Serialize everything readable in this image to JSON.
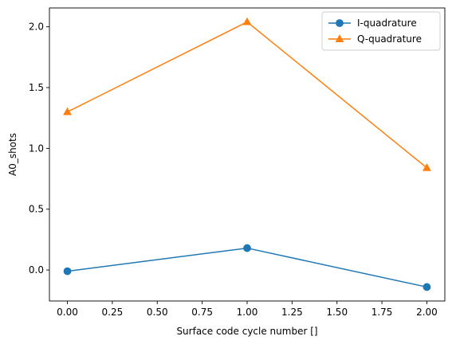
{
  "chart_data": {
    "type": "line",
    "title": "",
    "xlabel": "Surface code cycle number []",
    "ylabel": "A0_shots",
    "xlim": [
      -0.1,
      2.1
    ],
    "ylim": [
      -0.255,
      2.155
    ],
    "xticks": [
      0.0,
      0.25,
      0.5,
      0.75,
      1.0,
      1.25,
      1.5,
      1.75,
      2.0
    ],
    "xtick_labels": [
      "0.00",
      "0.25",
      "0.50",
      "0.75",
      "1.00",
      "1.25",
      "1.50",
      "1.75",
      "2.00"
    ],
    "yticks": [
      0.0,
      0.5,
      1.0,
      1.5,
      2.0
    ],
    "ytick_labels": [
      "0.0",
      "0.5",
      "1.0",
      "1.5",
      "2.0"
    ],
    "grid": false,
    "legend_position": "top-right",
    "x": [
      0,
      1,
      2
    ],
    "series": [
      {
        "name": "I-quadrature",
        "values": [
          -0.01,
          0.18,
          -0.14
        ],
        "color": "#1f77b4",
        "marker": "circle"
      },
      {
        "name": "Q-quadrature",
        "values": [
          1.3,
          2.04,
          0.84
        ],
        "color": "#ff7f0e",
        "marker": "triangle"
      }
    ]
  }
}
